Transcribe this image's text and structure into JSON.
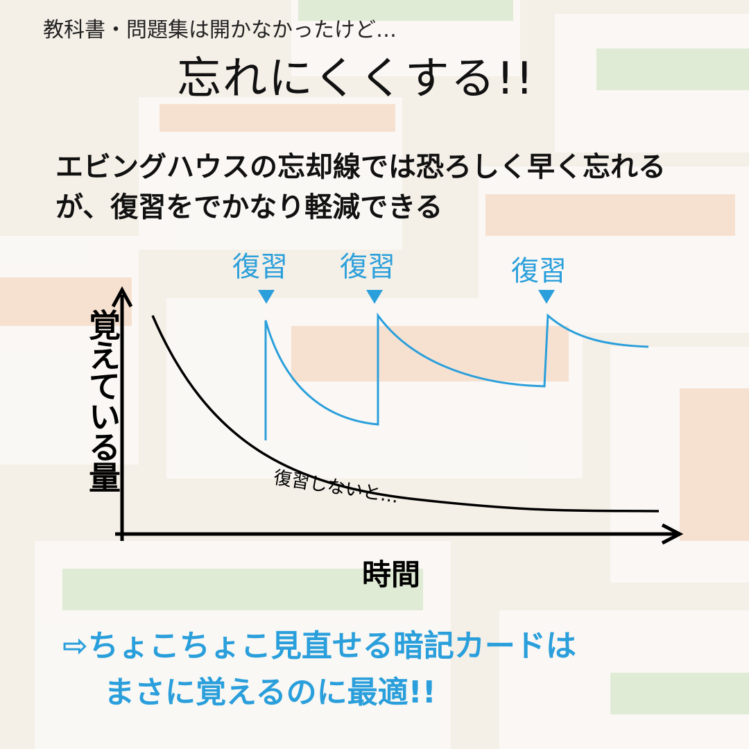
{
  "header": {
    "subtitle": "教科書・問題集は開かなかったけど…",
    "title": "忘れにくくする!!"
  },
  "lead": {
    "line1": "エビングハウスの忘却線では恐ろしく早く忘れる",
    "line2": "が、復習をでかなり軽減できる"
  },
  "graph": {
    "review_labels": [
      "復習",
      "復習",
      "復習"
    ],
    "y_label": "覚えている量",
    "x_label": "時間",
    "no_review_label": "復習しないと…"
  },
  "conclusion": {
    "line1": "⇨ちょこちょこ見直せる暗記カードは",
    "line2": "まさに覚えるのに最適!!"
  },
  "colors": {
    "accent": "#2a9fdb",
    "text": "#111111",
    "card_green": "#a8d5a0",
    "card_orange": "#f2b48a"
  }
}
